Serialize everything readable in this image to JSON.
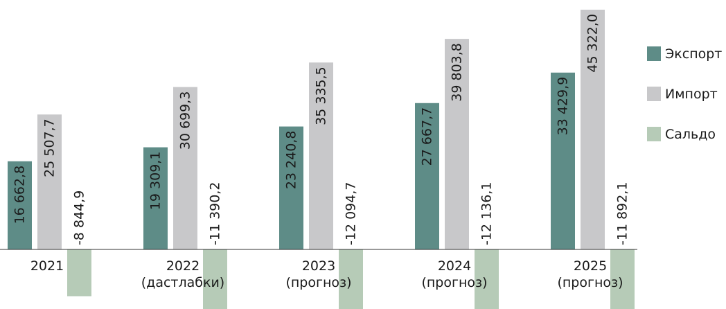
{
  "chart_data": {
    "type": "bar",
    "title": "",
    "xlabel": "",
    "ylabel": "",
    "categories": [
      [
        "2021"
      ],
      [
        "2022",
        "(дастлабки)"
      ],
      [
        "2023",
        "(прогноз)"
      ],
      [
        "2024",
        "(прогноз)"
      ],
      [
        "2025",
        "(прогноз)"
      ]
    ],
    "series": [
      {
        "name": "Экспорт",
        "color": "#5e8c87",
        "values": [
          16662.8,
          19309.1,
          23240.8,
          27667.7,
          33429.9
        ],
        "labels": [
          "16 662,8",
          "19 309,1",
          "23 240,8",
          "27 667,7",
          "33 429,9"
        ]
      },
      {
        "name": "Импорт",
        "color": "#c8c8ca",
        "values": [
          25507.7,
          30699.3,
          35335.5,
          39803.8,
          45322.0
        ],
        "labels": [
          "25 507,7",
          "30 699,3",
          "35 335,5",
          "39 803,8",
          "45 322,0"
        ]
      },
      {
        "name": "Сальдо",
        "color": "#b6cbb7",
        "values": [
          -8844.9,
          -11390.2,
          -12094.7,
          -12136.1,
          -11892.1
        ],
        "labels": [
          "-8 844,9",
          "-11 390,2",
          "-12 094,7",
          "-12 136,1",
          "-11 892,1"
        ]
      }
    ],
    "ylim": [
      -12500,
      46000
    ],
    "grid": false,
    "legend_position": "right"
  }
}
